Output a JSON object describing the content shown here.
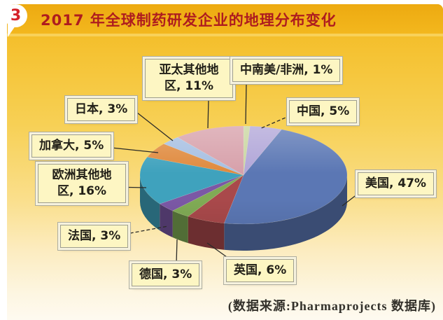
{
  "page": {
    "badge": "3",
    "title": "2017 年全球制药研发企业的地理分布变化",
    "source_note": "(数据来源:Pharmaprojects 数据库)"
  },
  "colors": {
    "panel_gold": "#f3b71e",
    "title_text": "#ae1c1f",
    "badge_text": "#d5222a",
    "label_box_bg": "#fdf6c3",
    "label_text": "#222018"
  },
  "chart_data": {
    "type": "pie",
    "style": "3d",
    "title": "2017 年全球制药研发企业的地理分布变化",
    "unit": "%",
    "start_angle_deg": 0,
    "clockwise": true,
    "legend_position": "none",
    "slices": [
      {
        "key": "latam_africa",
        "label": "中南美/非洲",
        "value": 1,
        "color": "#c9d6a0",
        "display": "中南美/非洲, 1%"
      },
      {
        "key": "china",
        "label": "中国",
        "value": 5,
        "color": "#b1a6d8",
        "display": "中国, 5%"
      },
      {
        "key": "usa",
        "label": "美国",
        "value": 47,
        "color": "#5b77b4",
        "display": "美国, 47%"
      },
      {
        "key": "uk",
        "label": "英国",
        "value": 6,
        "color": "#a9494b",
        "display": "英国, 6%"
      },
      {
        "key": "germany",
        "label": "德国",
        "value": 3,
        "color": "#80ab55",
        "display": "德国, 3%"
      },
      {
        "key": "france",
        "label": "法国",
        "value": 3,
        "color": "#7b58a5",
        "display": "法国, 3%"
      },
      {
        "key": "europe_other",
        "label": "欧洲其他地区",
        "value": 16,
        "color": "#3fa2bd",
        "display": "欧洲其他地区, 16%"
      },
      {
        "key": "canada",
        "label": "加拿大",
        "value": 5,
        "color": "#e08a3e",
        "display": "加拿大, 5%"
      },
      {
        "key": "japan",
        "label": "日本",
        "value": 3,
        "color": "#a6bfe2",
        "display": "日本, 3%"
      },
      {
        "key": "apac",
        "label": "亚太其他地区",
        "value": 11,
        "color": "#d7a0aa",
        "display": "亚太其他地区, 11%"
      }
    ]
  }
}
